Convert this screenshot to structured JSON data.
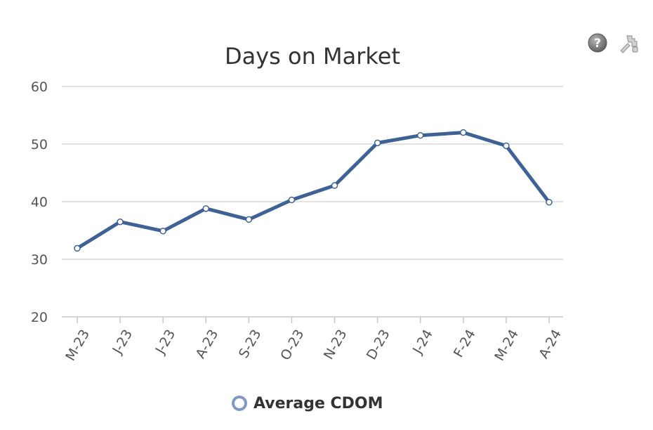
{
  "chart_data": {
    "type": "line",
    "title": "Days on Market",
    "categories": [
      "M-23",
      "J-23",
      "J-23",
      "A-23",
      "S-23",
      "O-23",
      "N-23",
      "D-23",
      "J-24",
      "F-24",
      "M-24",
      "A-24"
    ],
    "series": [
      {
        "name": "Average CDOM",
        "values": [
          31.9,
          36.5,
          34.9,
          38.8,
          36.9,
          40.3,
          42.8,
          50.2,
          51.5,
          52.0,
          49.7,
          39.9
        ]
      }
    ],
    "ylim": [
      20,
      60
    ],
    "yticks": [
      20,
      30,
      40,
      50,
      60
    ],
    "grid": true,
    "legend": "bottom-center",
    "colors": {
      "line": "#3e6196",
      "legend_marker": "#7f99c4",
      "grid": "#d8d8d8"
    }
  },
  "toolbar": {
    "help_icon": "help-icon",
    "settings_icon": "settings-icon"
  }
}
